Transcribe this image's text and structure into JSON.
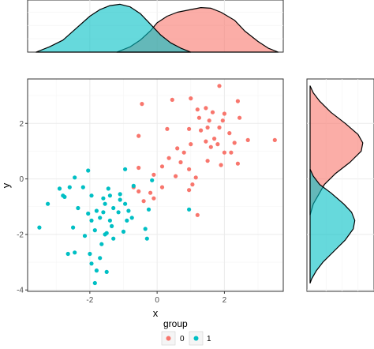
{
  "chart_data": [
    {
      "type": "scatter",
      "xlabel": "x",
      "ylabel": "y",
      "xlim": [
        -3.85,
        3.75
      ],
      "ylim": [
        -4.05,
        3.6
      ],
      "x_ticks": [
        -2,
        0,
        2
      ],
      "y_ticks": [
        -4,
        -2,
        0,
        2
      ],
      "x_tick_labels": [
        "-2",
        "0",
        "2"
      ],
      "y_tick_labels": [
        "-4",
        "-2",
        "0",
        "2"
      ],
      "grid": true,
      "legend": {
        "title": "group",
        "position": "bottom",
        "entries": [
          "0",
          "1"
        ]
      },
      "series": [
        {
          "name": "0",
          "color": "#F8766D",
          "points": [
            [
              -0.45,
              2.7
            ],
            [
              0.45,
              2.85
            ],
            [
              1.0,
              2.9
            ],
            [
              1.85,
              3.35
            ],
            [
              2.4,
              2.8
            ],
            [
              1.2,
              2.5
            ],
            [
              1.45,
              2.55
            ],
            [
              1.65,
              2.4
            ],
            [
              2.0,
              2.35
            ],
            [
              1.25,
              2.2
            ],
            [
              1.55,
              2.1
            ],
            [
              1.95,
              2.1
            ],
            [
              2.45,
              2.2
            ],
            [
              1.85,
              1.85
            ],
            [
              1.5,
              1.85
            ],
            [
              0.95,
              1.8
            ],
            [
              1.3,
              1.75
            ],
            [
              0.3,
              1.8
            ],
            [
              2.15,
              1.65
            ],
            [
              2.7,
              1.4
            ],
            [
              3.5,
              1.4
            ],
            [
              2.3,
              1.3
            ],
            [
              1.7,
              1.45
            ],
            [
              1.45,
              1.35
            ],
            [
              1.8,
              1.25
            ],
            [
              1.6,
              1.15
            ],
            [
              1.0,
              1.25
            ],
            [
              0.6,
              1.1
            ],
            [
              -0.55,
              1.55
            ],
            [
              0.8,
              0.95
            ],
            [
              2.2,
              0.95
            ],
            [
              2.0,
              0.95
            ],
            [
              1.5,
              0.65
            ],
            [
              1.9,
              0.5
            ],
            [
              2.4,
              0.55
            ],
            [
              0.35,
              0.75
            ],
            [
              0.7,
              0.6
            ],
            [
              0.95,
              0.35
            ],
            [
              -0.55,
              0.4
            ],
            [
              0.15,
              0.45
            ],
            [
              1.15,
              0.05
            ],
            [
              0.55,
              0.1
            ],
            [
              -0.1,
              0.15
            ],
            [
              1.05,
              -0.2
            ],
            [
              0.15,
              -0.3
            ],
            [
              -0.2,
              -0.5
            ],
            [
              -0.1,
              -0.7
            ],
            [
              -0.55,
              -0.45
            ],
            [
              -0.4,
              -0.8
            ],
            [
              -0.7,
              -0.3
            ],
            [
              0.95,
              -0.4
            ],
            [
              1.2,
              -1.3
            ]
          ]
        },
        {
          "name": "1",
          "color": "#00BFC4",
          "points": [
            [
              -2.05,
              0.3
            ],
            [
              -0.95,
              0.35
            ],
            [
              -2.45,
              0.05
            ],
            [
              -2.6,
              -0.3
            ],
            [
              -2.2,
              -0.3
            ],
            [
              -2.9,
              -0.35
            ],
            [
              -0.15,
              -0.05
            ],
            [
              -1.45,
              -0.35
            ],
            [
              -0.7,
              -0.25
            ],
            [
              -1.95,
              -0.6
            ],
            [
              -2.8,
              -0.6
            ],
            [
              -3.25,
              -0.9
            ],
            [
              -1.1,
              -0.55
            ],
            [
              -1.4,
              -0.6
            ],
            [
              -2.75,
              -0.65
            ],
            [
              -1.6,
              -0.7
            ],
            [
              -1.1,
              -0.75
            ],
            [
              -1.55,
              -0.9
            ],
            [
              -0.95,
              -0.9
            ],
            [
              -1.8,
              -1.15
            ],
            [
              -2.35,
              -1.05
            ],
            [
              -1.3,
              -1.05
            ],
            [
              -1.6,
              -1.2
            ],
            [
              -0.25,
              -1.1
            ],
            [
              -1.15,
              -1.2
            ],
            [
              -0.85,
              -1.15
            ],
            [
              -2.05,
              -1.25
            ],
            [
              -1.7,
              -1.4
            ],
            [
              -1.4,
              -1.5
            ],
            [
              -0.9,
              -1.5
            ],
            [
              -0.75,
              -1.4
            ],
            [
              -1.95,
              -1.5
            ],
            [
              -1.35,
              -1.7
            ],
            [
              -2.5,
              -1.75
            ],
            [
              -1.85,
              -1.85
            ],
            [
              -3.5,
              -1.75
            ],
            [
              -0.35,
              -1.8
            ],
            [
              -1.5,
              -1.95
            ],
            [
              -1.55,
              -2.0
            ],
            [
              -1.3,
              -2.15
            ],
            [
              -1.0,
              -1.9
            ],
            [
              -2.15,
              -2.05
            ],
            [
              -1.65,
              -2.35
            ],
            [
              -0.3,
              -2.15
            ],
            [
              -2.45,
              -2.65
            ],
            [
              -2.0,
              -2.7
            ],
            [
              -2.65,
              -2.7
            ],
            [
              -1.7,
              -2.85
            ],
            [
              -1.95,
              -3.05
            ],
            [
              -1.8,
              -3.3
            ],
            [
              -1.5,
              -3.35
            ],
            [
              -1.85,
              -3.75
            ],
            [
              0.95,
              -1.1
            ]
          ]
        }
      ]
    },
    {
      "type": "area",
      "title": "",
      "xlim": [
        -3.85,
        3.75
      ],
      "ylim": [
        0,
        0.38
      ],
      "grid": true,
      "series": [
        {
          "name": "0",
          "color": "#F8766D",
          "x": [
            -1.2,
            -0.8,
            -0.5,
            -0.2,
            0.0,
            0.3,
            0.6,
            1.0,
            1.3,
            1.6,
            1.9,
            2.3,
            2.6,
            3.0,
            3.3,
            3.6
          ],
          "y": [
            0.0,
            0.04,
            0.09,
            0.16,
            0.22,
            0.27,
            0.3,
            0.32,
            0.335,
            0.33,
            0.3,
            0.24,
            0.16,
            0.08,
            0.03,
            0.0
          ]
        },
        {
          "name": "1",
          "color": "#00BFC4",
          "x": [
            -3.6,
            -3.2,
            -2.8,
            -2.4,
            -2.0,
            -1.7,
            -1.4,
            -1.1,
            -0.8,
            -0.5,
            -0.2,
            0.1,
            0.4,
            0.7,
            1.0
          ],
          "y": [
            0.0,
            0.04,
            0.09,
            0.18,
            0.27,
            0.32,
            0.35,
            0.36,
            0.34,
            0.29,
            0.21,
            0.13,
            0.07,
            0.03,
            0.0
          ]
        }
      ]
    },
    {
      "type": "area",
      "title": "",
      "ylim": [
        -4.05,
        3.6
      ],
      "xlim": [
        0,
        0.4
      ],
      "grid": true,
      "orientation": "vertical",
      "series": [
        {
          "name": "0",
          "color": "#F8766D",
          "y": [
            3.35,
            3.1,
            2.8,
            2.4,
            2.0,
            1.6,
            1.3,
            1.0,
            0.6,
            0.2,
            -0.2,
            -0.6,
            -0.9,
            -1.3
          ],
          "x": [
            0.0,
            0.02,
            0.06,
            0.13,
            0.22,
            0.3,
            0.33,
            0.32,
            0.25,
            0.16,
            0.09,
            0.05,
            0.02,
            0.0
          ]
        },
        {
          "name": "1",
          "color": "#00BFC4",
          "y": [
            0.35,
            0.1,
            -0.2,
            -0.5,
            -0.9,
            -1.2,
            -1.5,
            -1.8,
            -2.2,
            -2.6,
            -3.0,
            -3.3,
            -3.6,
            -3.75
          ],
          "x": [
            0.0,
            0.02,
            0.06,
            0.13,
            0.21,
            0.26,
            0.28,
            0.27,
            0.22,
            0.15,
            0.08,
            0.04,
            0.01,
            0.0
          ]
        }
      ]
    }
  ]
}
